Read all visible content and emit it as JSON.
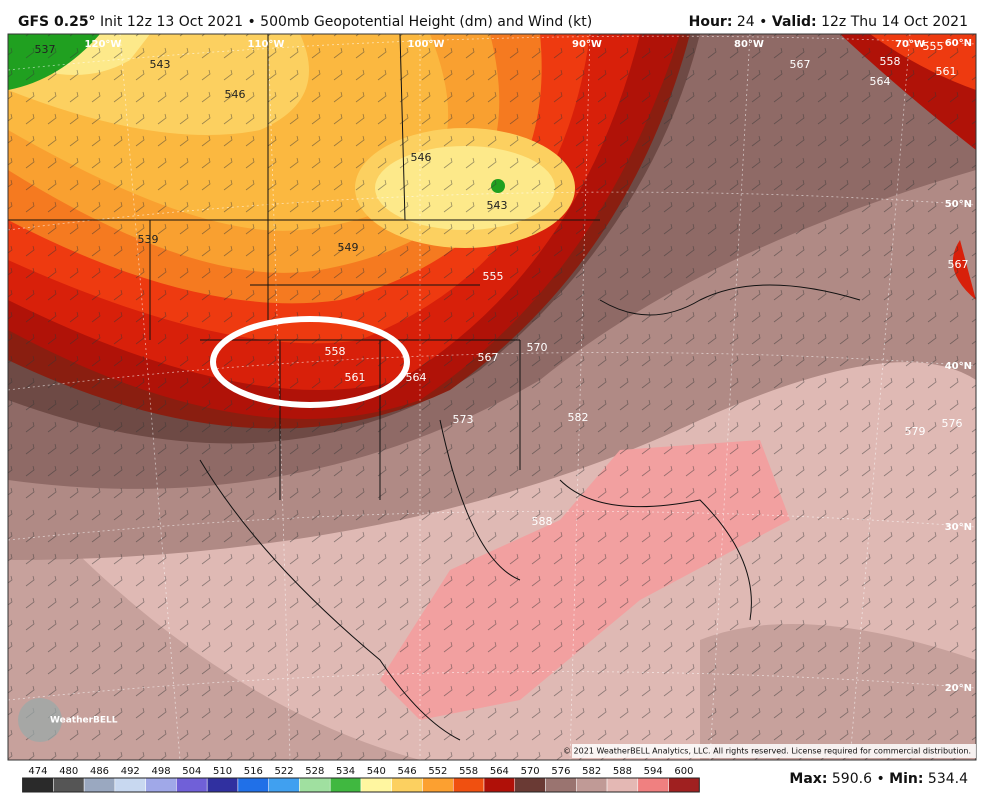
{
  "header": {
    "model": "GFS 0.25°",
    "description": "Init 12z 13 Oct 2021 • 500mb Geopotential Height (dm) and Wind (kt)",
    "hour_label": "Hour:",
    "hour": "24",
    "sep": "•",
    "valid_label": "Valid:",
    "valid": "12z Thu 14 Oct 2021"
  },
  "map": {
    "longitudes": [
      "120°W",
      "110°W",
      "100°W",
      "90°W",
      "80°W",
      "70°W"
    ],
    "latitudes": [
      "60°N",
      "50°N",
      "40°N",
      "30°N",
      "20°N"
    ],
    "contour_labels": [
      "543",
      "546",
      "537",
      "539",
      "549",
      "546",
      "543",
      "555",
      "558",
      "561",
      "564",
      "567",
      "570",
      "573",
      "576",
      "579",
      "567",
      "564",
      "558",
      "555",
      "561",
      "567",
      "588",
      "582"
    ],
    "logo": "WeatherBELL",
    "copyright": "© 2021 WeatherBELL Analytics, LLC. All rights reserved. License required for commercial distribution."
  },
  "colorbar": {
    "labels": [
      "474",
      "480",
      "486",
      "492",
      "498",
      "504",
      "510",
      "516",
      "522",
      "528",
      "534",
      "540",
      "546",
      "552",
      "558",
      "564",
      "570",
      "576",
      "582",
      "588",
      "594",
      "600"
    ],
    "colors": [
      "#2a2a2a",
      "#555555",
      "#9aa8c0",
      "#c8d8f0",
      "#a0a8e8",
      "#7060d8",
      "#3030a0",
      "#2070e8",
      "#40a0f0",
      "#a0e0a0",
      "#40b840",
      "#fff6a0",
      "#fcd060",
      "#fca030",
      "#f05010",
      "#b01008",
      "#6a3a34",
      "#9a7470",
      "#c09a96",
      "#e4b8b4",
      "#f08080",
      "#a02020"
    ]
  },
  "stats": {
    "max_label": "Max:",
    "max": "590.6",
    "sep": "•",
    "min_label": "Min:",
    "min": "534.4"
  }
}
